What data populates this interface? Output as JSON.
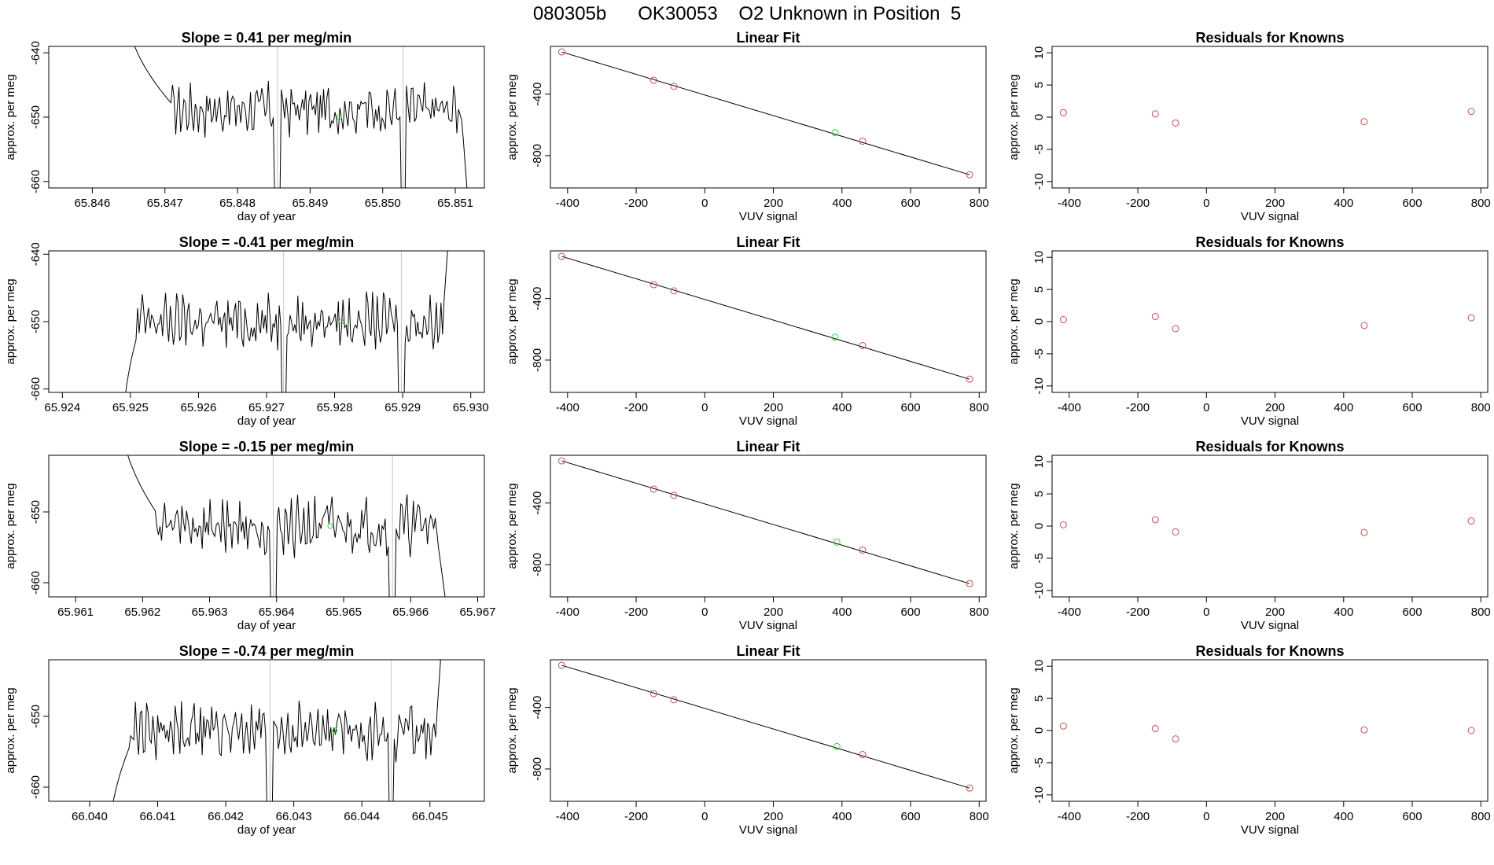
{
  "page_title": "080305b      OK30053    O2 Unknown in Position  5",
  "colors": {
    "trace": "#000000",
    "known_point": "#c85050",
    "unknown_point": "#32d232",
    "vline": "#c8c8c8",
    "axis": "#000000"
  },
  "chart_data": [
    {
      "type": "line",
      "panel": "time-series",
      "row": 1,
      "title": "Slope =  0.41  per meg/min",
      "xlabel": "day of year",
      "ylabel": "approx. per meg",
      "xlim": [
        65.8454,
        65.8514
      ],
      "ylim": [
        -661,
        -639
      ],
      "xticks": [
        65.846,
        65.847,
        65.848,
        65.849,
        65.85,
        65.851
      ],
      "xtick_labels": [
        "65.846",
        "65.847",
        "65.848",
        "65.849",
        "65.850",
        "65.851"
      ],
      "yticks": [
        -640,
        -650,
        -660
      ],
      "ytick_labels": [
        "-640",
        "-650",
        "-660"
      ],
      "start_x": 65.8471,
      "end_x": 65.8511,
      "first_x": 65.8465,
      "last_x": 65.8512,
      "vlines": [
        65.84855,
        65.85028
      ],
      "unknown_point": {
        "x": 65.8494,
        "y": -650
      }
    },
    {
      "type": "scatter",
      "panel": "linear-fit",
      "row": 1,
      "title": "Linear Fit",
      "xlabel": "VUV signal",
      "ylabel": "approx. per meg",
      "xlim": [
        -450,
        820
      ],
      "ylim": [
        -1010,
        -90
      ],
      "xticks": [
        -400,
        -200,
        0,
        200,
        400,
        600,
        800
      ],
      "xtick_labels": [
        "-400",
        "-200",
        "0",
        "200",
        "400",
        "600",
        "800"
      ],
      "yticks": [
        -400,
        -800
      ],
      "ytick_labels": [
        "-400",
        "-800"
      ],
      "known": {
        "x": [
          -417,
          -149,
          -90,
          460,
          772
        ],
        "y": [
          -126,
          -310,
          -350,
          -706,
          -924
        ]
      },
      "unknown": {
        "x": 380,
        "y": -651
      },
      "fit_line": {
        "x": [
          -417,
          772
        ],
        "y": [
          -126,
          -924
        ]
      }
    },
    {
      "type": "scatter",
      "panel": "residuals",
      "row": 1,
      "title": "Residuals for Knowns",
      "xlabel": "VUV signal",
      "ylabel": "approx. per meg",
      "xlim": [
        -450,
        820
      ],
      "ylim": [
        -11,
        11
      ],
      "xticks": [
        -400,
        -200,
        0,
        200,
        400,
        600,
        800
      ],
      "xtick_labels": [
        "-400",
        "-200",
        "0",
        "200",
        "400",
        "600",
        "800"
      ],
      "yticks": [
        10,
        5,
        0,
        -5,
        -10
      ],
      "ytick_labels": [
        "10",
        "5",
        "0",
        "-5",
        "-10"
      ],
      "known": {
        "x": [
          -417,
          -149,
          -90,
          460,
          772
        ],
        "y": [
          0.7,
          0.5,
          -0.9,
          -0.7,
          0.9
        ]
      }
    },
    {
      "type": "line",
      "panel": "time-series",
      "row": 2,
      "title": "Slope =  -0.41  per meg/min",
      "xlabel": "day of year",
      "ylabel": "approx. per meg",
      "xlim": [
        65.9238,
        65.9302
      ],
      "ylim": [
        -660.5,
        -639.5
      ],
      "xticks": [
        65.924,
        65.925,
        65.926,
        65.927,
        65.928,
        65.929,
        65.93
      ],
      "xtick_labels": [
        "65.924",
        "65.925",
        "65.926",
        "65.927",
        "65.928",
        "65.929",
        "65.930"
      ],
      "yticks": [
        -640,
        -650,
        -660
      ],
      "ytick_labels": [
        "-640",
        "-650",
        "-660"
      ],
      "start_x": 65.9251,
      "end_x": 65.9296,
      "first_x": 65.9249,
      "last_x": 65.9297,
      "vlines": [
        65.92725,
        65.92898
      ],
      "unknown_point": {
        "x": 65.9281,
        "y": -650
      }
    },
    {
      "type": "scatter",
      "panel": "linear-fit",
      "row": 2,
      "title": "Linear Fit",
      "xlabel": "VUV signal",
      "ylabel": "approx. per meg",
      "xlim": [
        -450,
        820
      ],
      "ylim": [
        -1010,
        -90
      ],
      "xticks": [
        -400,
        -200,
        0,
        200,
        400,
        600,
        800
      ],
      "xtick_labels": [
        "-400",
        "-200",
        "0",
        "200",
        "400",
        "600",
        "800"
      ],
      "yticks": [
        -400,
        -800
      ],
      "ytick_labels": [
        "-400",
        "-800"
      ],
      "known": {
        "x": [
          -417,
          -149,
          -90,
          460,
          772
        ],
        "y": [
          -126,
          -310,
          -350,
          -706,
          -924
        ]
      },
      "unknown": {
        "x": 380,
        "y": -651
      },
      "fit_line": {
        "x": [
          -417,
          772
        ],
        "y": [
          -126,
          -924
        ]
      }
    },
    {
      "type": "scatter",
      "panel": "residuals",
      "row": 2,
      "title": "Residuals for Knowns",
      "xlabel": "VUV signal",
      "ylabel": "approx. per meg",
      "xlim": [
        -450,
        820
      ],
      "ylim": [
        -11,
        11
      ],
      "xticks": [
        -400,
        -200,
        0,
        200,
        400,
        600,
        800
      ],
      "xtick_labels": [
        "-400",
        "-200",
        "0",
        "200",
        "400",
        "600",
        "800"
      ],
      "yticks": [
        10,
        5,
        0,
        -5,
        -10
      ],
      "ytick_labels": [
        "10",
        "5",
        "0",
        "-5",
        "-10"
      ],
      "known": {
        "x": [
          -417,
          -149,
          -90,
          460,
          772
        ],
        "y": [
          0.3,
          0.8,
          -1.1,
          -0.6,
          0.6
        ]
      }
    },
    {
      "type": "line",
      "panel": "time-series",
      "row": 3,
      "title": "Slope =  -0.15  per meg/min",
      "xlabel": "day of year",
      "ylabel": "approx. per meg",
      "xlim": [
        65.9606,
        65.9671
      ],
      "ylim": [
        -662,
        -642
      ],
      "xticks": [
        65.961,
        65.962,
        65.963,
        65.964,
        65.965,
        65.966,
        65.967
      ],
      "xtick_labels": [
        "65.961",
        "65.962",
        "65.963",
        "65.964",
        "65.965",
        "65.966",
        "65.967"
      ],
      "yticks": [
        -650,
        -660
      ],
      "ytick_labels": [
        "-650",
        "-660"
      ],
      "start_x": 65.9622,
      "end_x": 65.9664,
      "first_x": 65.9617,
      "last_x": 65.9666,
      "vlines": [
        65.96395,
        65.96573
      ],
      "unknown_point": {
        "x": 65.9648,
        "y": -652
      }
    },
    {
      "type": "scatter",
      "panel": "linear-fit",
      "row": 3,
      "title": "Linear Fit",
      "xlabel": "VUV signal",
      "ylabel": "approx. per meg",
      "xlim": [
        -450,
        820
      ],
      "ylim": [
        -1010,
        -90
      ],
      "xticks": [
        -400,
        -200,
        0,
        200,
        400,
        600,
        800
      ],
      "xtick_labels": [
        "-400",
        "-200",
        "0",
        "200",
        "400",
        "600",
        "800"
      ],
      "yticks": [
        -400,
        -800
      ],
      "ytick_labels": [
        "-400",
        "-800"
      ],
      "known": {
        "x": [
          -417,
          -149,
          -90,
          460,
          772
        ],
        "y": [
          -126,
          -310,
          -350,
          -706,
          -924
        ]
      },
      "unknown": {
        "x": 385,
        "y": -654
      },
      "fit_line": {
        "x": [
          -417,
          772
        ],
        "y": [
          -126,
          -924
        ]
      }
    },
    {
      "type": "scatter",
      "panel": "residuals",
      "row": 3,
      "title": "Residuals for Knowns",
      "xlabel": "VUV signal",
      "ylabel": "approx. per meg",
      "xlim": [
        -450,
        820
      ],
      "ylim": [
        -11,
        11
      ],
      "xticks": [
        -400,
        -200,
        0,
        200,
        400,
        600,
        800
      ],
      "xtick_labels": [
        "-400",
        "-200",
        "0",
        "200",
        "400",
        "600",
        "800"
      ],
      "yticks": [
        10,
        5,
        0,
        -5,
        -10
      ],
      "ytick_labels": [
        "10",
        "5",
        "0",
        "-5",
        "-10"
      ],
      "known": {
        "x": [
          -417,
          -149,
          -90,
          460,
          772
        ],
        "y": [
          0.2,
          1.0,
          -0.9,
          -1.0,
          0.8
        ]
      }
    },
    {
      "type": "line",
      "panel": "time-series",
      "row": 4,
      "title": "Slope =  -0.74  per meg/min",
      "xlabel": "day of year",
      "ylabel": "approx. per meg",
      "xlim": [
        66.0394,
        66.0458
      ],
      "ylim": [
        -662,
        -642
      ],
      "xticks": [
        66.04,
        66.041,
        66.042,
        66.043,
        66.044,
        66.045
      ],
      "xtick_labels": [
        "66.040",
        "66.041",
        "66.042",
        "66.043",
        "66.044",
        "66.045"
      ],
      "yticks": [
        -650,
        -660
      ],
      "ytick_labels": [
        "-650",
        "-660"
      ],
      "start_x": 66.0406,
      "end_x": 66.0451,
      "first_x": 66.0403,
      "last_x": 66.0452,
      "vlines": [
        66.04265,
        66.04443
      ],
      "unknown_point": {
        "x": 66.0436,
        "y": -652
      }
    },
    {
      "type": "scatter",
      "panel": "linear-fit",
      "row": 4,
      "title": "Linear Fit",
      "xlabel": "VUV signal",
      "ylabel": "approx. per meg",
      "xlim": [
        -450,
        820
      ],
      "ylim": [
        -1010,
        -90
      ],
      "xticks": [
        -400,
        -200,
        0,
        200,
        400,
        600,
        800
      ],
      "xtick_labels": [
        "-400",
        "-200",
        "0",
        "200",
        "400",
        "600",
        "800"
      ],
      "yticks": [
        -400,
        -800
      ],
      "ytick_labels": [
        "-400",
        "-800"
      ],
      "known": {
        "x": [
          -417,
          -149,
          -90,
          460,
          772
        ],
        "y": [
          -126,
          -310,
          -350,
          -706,
          -924
        ]
      },
      "unknown": {
        "x": 385,
        "y": -654
      },
      "fit_line": {
        "x": [
          -417,
          772
        ],
        "y": [
          -126,
          -924
        ]
      }
    },
    {
      "type": "scatter",
      "panel": "residuals",
      "row": 4,
      "title": "Residuals for Knowns",
      "xlabel": "VUV signal",
      "ylabel": "approx. per meg",
      "xlim": [
        -450,
        820
      ],
      "ylim": [
        -11,
        11
      ],
      "xticks": [
        -400,
        -200,
        0,
        200,
        400,
        600,
        800
      ],
      "xtick_labels": [
        "-400",
        "-200",
        "0",
        "200",
        "400",
        "600",
        "800"
      ],
      "yticks": [
        10,
        5,
        0,
        -5,
        -10
      ],
      "ytick_labels": [
        "10",
        "5",
        "0",
        "-5",
        "-10"
      ],
      "known": {
        "x": [
          -417,
          -149,
          -90,
          460,
          772
        ],
        "y": [
          0.7,
          0.3,
          -1.3,
          0.1,
          0.0
        ]
      }
    }
  ]
}
